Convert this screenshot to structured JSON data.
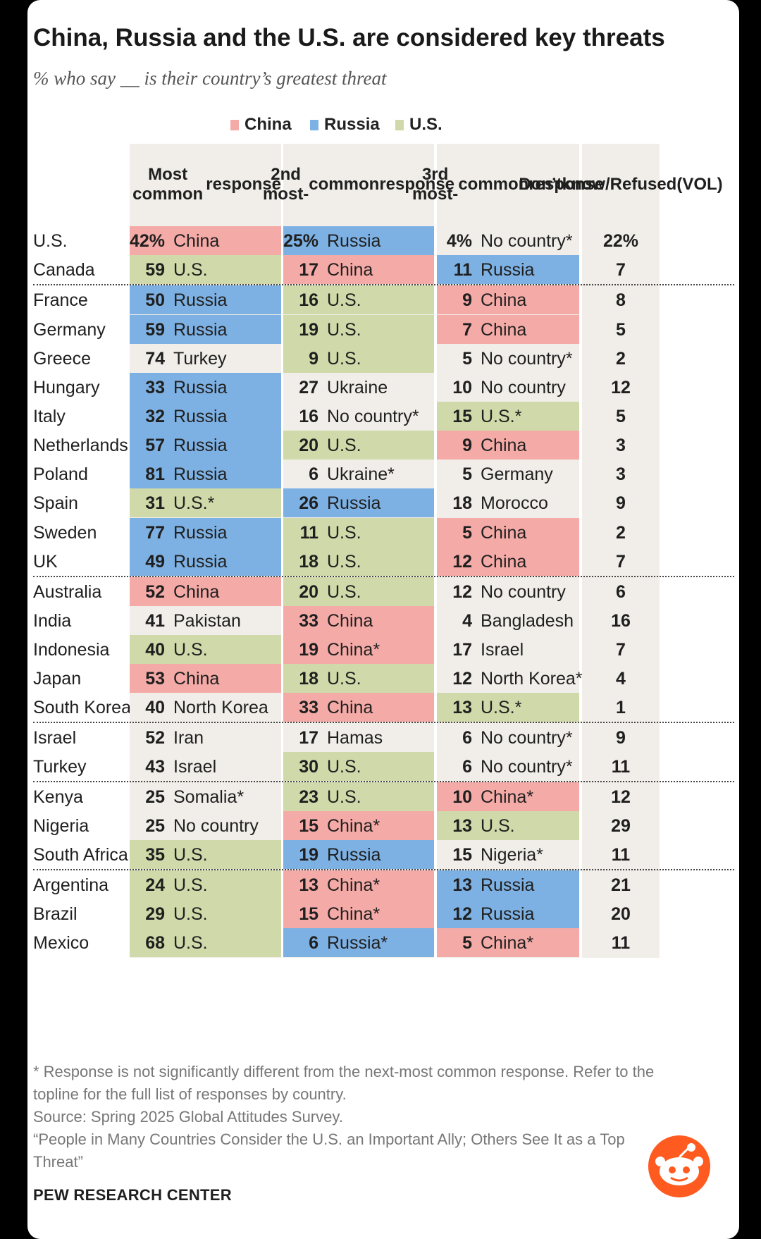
{
  "chart_data": {
    "type": "table",
    "title": "China, Russia and the U.S. are considered key threats",
    "subtitle": "% who say __ is their country’s greatest threat",
    "legend": [
      {
        "label": "China",
        "color": "#f4aaa6"
      },
      {
        "label": "Russia",
        "color": "#7eb1e3"
      },
      {
        "label": "U.S.",
        "color": "#d0d9a9"
      }
    ],
    "colors": {
      "China": "#f4aaa6",
      "Russia": "#7eb1e3",
      "U.S.": "#d0d9a9",
      "neutral": "#f1eee9"
    },
    "columns": [
      [
        "Most common",
        "response"
      ],
      [
        "2nd most-",
        "common",
        "response"
      ],
      [
        "3rd most-",
        "common",
        "response"
      ],
      [
        "Don’t",
        "know/",
        "Refused",
        "(VOL)"
      ]
    ],
    "rows": [
      {
        "country": "U.S.",
        "r1": [
          "42%",
          "China"
        ],
        "r2": [
          "25%",
          "Russia"
        ],
        "r3": [
          "4%",
          "No country*"
        ],
        "dk": "22%"
      },
      {
        "country": "Canada",
        "r1": [
          "59",
          "U.S."
        ],
        "r2": [
          "17",
          "China"
        ],
        "r3": [
          "11",
          "Russia"
        ],
        "dk": "7"
      },
      {
        "country": "France",
        "r1": [
          "50",
          "Russia"
        ],
        "r2": [
          "16",
          "U.S."
        ],
        "r3": [
          "9",
          "China"
        ],
        "dk": "8"
      },
      {
        "country": "Germany",
        "r1": [
          "59",
          "Russia"
        ],
        "r2": [
          "19",
          "U.S."
        ],
        "r3": [
          "7",
          "China"
        ],
        "dk": "5"
      },
      {
        "country": "Greece",
        "r1": [
          "74",
          "Turkey"
        ],
        "r2": [
          "9",
          "U.S."
        ],
        "r3": [
          "5",
          "No country*"
        ],
        "dk": "2"
      },
      {
        "country": "Hungary",
        "r1": [
          "33",
          "Russia"
        ],
        "r2": [
          "27",
          "Ukraine"
        ],
        "r3": [
          "10",
          "No country"
        ],
        "dk": "12"
      },
      {
        "country": "Italy",
        "r1": [
          "32",
          "Russia"
        ],
        "r2": [
          "16",
          "No country*"
        ],
        "r3": [
          "15",
          "U.S.*"
        ],
        "dk": "5"
      },
      {
        "country": "Netherlands",
        "r1": [
          "57",
          "Russia"
        ],
        "r2": [
          "20",
          "U.S."
        ],
        "r3": [
          "9",
          "China"
        ],
        "dk": "3"
      },
      {
        "country": "Poland",
        "r1": [
          "81",
          "Russia"
        ],
        "r2": [
          "6",
          "Ukraine*"
        ],
        "r3": [
          "5",
          "Germany"
        ],
        "dk": "3"
      },
      {
        "country": "Spain",
        "r1": [
          "31",
          "U.S.*"
        ],
        "r2": [
          "26",
          "Russia"
        ],
        "r3": [
          "18",
          "Morocco"
        ],
        "dk": "9"
      },
      {
        "country": "Sweden",
        "r1": [
          "77",
          "Russia"
        ],
        "r2": [
          "11",
          "U.S."
        ],
        "r3": [
          "5",
          "China"
        ],
        "dk": "2"
      },
      {
        "country": "UK",
        "r1": [
          "49",
          "Russia"
        ],
        "r2": [
          "18",
          "U.S."
        ],
        "r3": [
          "12",
          "China"
        ],
        "dk": "7"
      },
      {
        "country": "Australia",
        "r1": [
          "52",
          "China"
        ],
        "r2": [
          "20",
          "U.S."
        ],
        "r3": [
          "12",
          "No country"
        ],
        "dk": "6"
      },
      {
        "country": "India",
        "r1": [
          "41",
          "Pakistan"
        ],
        "r2": [
          "33",
          "China"
        ],
        "r3": [
          "4",
          "Bangladesh"
        ],
        "dk": "16"
      },
      {
        "country": "Indonesia",
        "r1": [
          "40",
          "U.S."
        ],
        "r2": [
          "19",
          "China*"
        ],
        "r3": [
          "17",
          "Israel"
        ],
        "dk": "7"
      },
      {
        "country": "Japan",
        "r1": [
          "53",
          "China"
        ],
        "r2": [
          "18",
          "U.S."
        ],
        "r3": [
          "12",
          "North Korea*"
        ],
        "dk": "4"
      },
      {
        "country": "South Korea",
        "r1": [
          "40",
          "North Korea"
        ],
        "r2": [
          "33",
          "China"
        ],
        "r3": [
          "13",
          "U.S.*"
        ],
        "dk": "1"
      },
      {
        "country": "Israel",
        "r1": [
          "52",
          "Iran"
        ],
        "r2": [
          "17",
          "Hamas"
        ],
        "r3": [
          "6",
          "No country*"
        ],
        "dk": "9"
      },
      {
        "country": "Turkey",
        "r1": [
          "43",
          "Israel"
        ],
        "r2": [
          "30",
          "U.S."
        ],
        "r3": [
          "6",
          "No country*"
        ],
        "dk": "11"
      },
      {
        "country": "Kenya",
        "r1": [
          "25",
          "Somalia*"
        ],
        "r2": [
          "23",
          "U.S."
        ],
        "r3": [
          "10",
          "China*"
        ],
        "dk": "12"
      },
      {
        "country": "Nigeria",
        "r1": [
          "25",
          "No country"
        ],
        "r2": [
          "15",
          "China*"
        ],
        "r3": [
          "13",
          "U.S."
        ],
        "dk": "29"
      },
      {
        "country": "South Africa",
        "r1": [
          "35",
          "U.S."
        ],
        "r2": [
          "19",
          "Russia"
        ],
        "r3": [
          "15",
          "Nigeria*"
        ],
        "dk": "11"
      },
      {
        "country": "Argentina",
        "r1": [
          "24",
          "U.S."
        ],
        "r2": [
          "13",
          "China*"
        ],
        "r3": [
          "13",
          "Russia"
        ],
        "dk": "21"
      },
      {
        "country": "Brazil",
        "r1": [
          "29",
          "U.S."
        ],
        "r2": [
          "15",
          "China*"
        ],
        "r3": [
          "12",
          "Russia"
        ],
        "dk": "20"
      },
      {
        "country": "Mexico",
        "r1": [
          "68",
          "U.S."
        ],
        "r2": [
          "6",
          "Russia*"
        ],
        "r3": [
          "5",
          "China*"
        ],
        "dk": "11"
      }
    ],
    "group_separators_after": [
      "Canada",
      "UK",
      "South Korea",
      "Turkey",
      "South Africa"
    ]
  },
  "notes": {
    "note_line1": "* Response is not significantly different from the next-most common response. Refer to the",
    "note_line2": "topline for the full list of responses by country.",
    "source": "Source: Spring 2025 Global Attitudes Survey.",
    "report_line1": "“People in Many Countries Consider the U.S. an Important Ally; Others See It as a Top",
    "report_line2": "Threat”"
  },
  "brand": "PEW RESEARCH CENTER"
}
